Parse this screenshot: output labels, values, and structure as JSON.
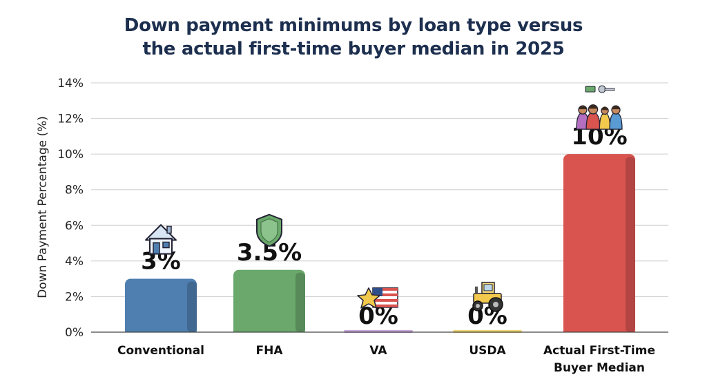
{
  "chart_data": {
    "type": "bar",
    "title_lines": [
      "Down payment minimums by loan type versus",
      "the actual first-time buyer median in 2025"
    ],
    "xlabel": "",
    "ylabel": "Down Payment Percentage (%)",
    "ylim": [
      0,
      14
    ],
    "yticks": [
      "0%",
      "2%",
      "4%",
      "6%",
      "8%",
      "10%",
      "12%",
      "14%"
    ],
    "grid": true,
    "categories": [
      [
        "Conventional"
      ],
      [
        "FHA"
      ],
      [
        "VA"
      ],
      [
        "USDA"
      ],
      [
        "Actual First-Time",
        "Buyer Median"
      ]
    ],
    "values": [
      3,
      3.5,
      0,
      0,
      10
    ],
    "data_labels": [
      "3%",
      "3.5%",
      "0%",
      "0%",
      "10%"
    ],
    "colors": [
      "#4f7fb0",
      "#6aa86b",
      "#c9a7dc",
      "#efd675",
      "#d9534f"
    ],
    "icons": [
      "house-icon",
      "shield-icon",
      "flag-star-icon",
      "tractor-icon",
      "family-keys-icon"
    ]
  }
}
